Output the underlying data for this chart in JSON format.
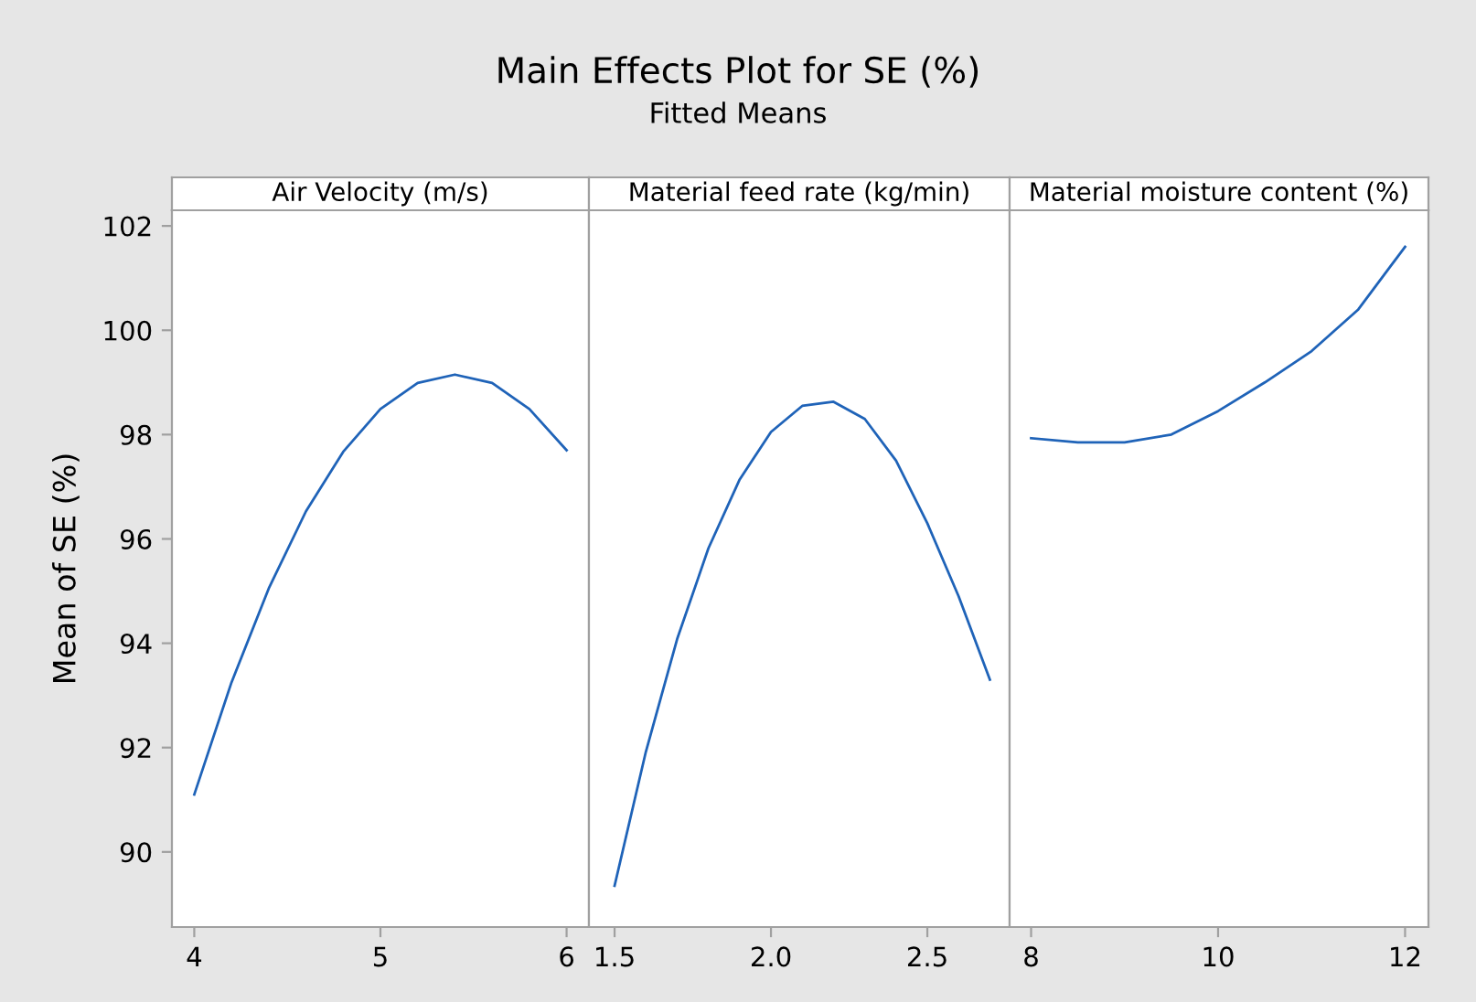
{
  "chart_data": [
    {
      "type": "line",
      "xlabel": "Air Velocity (m/s)",
      "ylabel": "Mean of SE (%)",
      "x": [
        4,
        4.2,
        4.4,
        4.6,
        4.8,
        5.0,
        5.2,
        5.4,
        5.6,
        5.8,
        6.0
      ],
      "series": [
        {
          "color": "#1f63b8",
          "values": [
            91.1,
            93.25,
            95.05,
            96.53,
            97.67,
            98.49,
            98.99,
            99.15,
            98.99,
            98.49,
            97.7
          ]
        }
      ],
      "xlim": [
        3.88,
        6.12
      ],
      "xticks": [
        4,
        5,
        6
      ],
      "ylim": [
        88.56,
        102.3
      ],
      "yticks": [
        90,
        92,
        94,
        96,
        98,
        100,
        102
      ],
      "grid": false,
      "legend": false,
      "marker": "none",
      "line_style": "solid"
    },
    {
      "type": "line",
      "title": "Main Effects Plot for SE (%)",
      "subtitle": "Fitted Means",
      "xlabel": "Material feed rate (kg/min)",
      "x": [
        1.5,
        1.6,
        1.7,
        1.8,
        1.9,
        2.0,
        2.1,
        2.2,
        2.3,
        2.4,
        2.5,
        2.6,
        2.7
      ],
      "series": [
        {
          "color": "#1f63b8",
          "values": [
            89.35,
            91.92,
            94.08,
            95.82,
            97.14,
            98.05,
            98.55,
            98.63,
            98.3,
            97.5,
            96.3,
            94.9,
            93.3
          ]
        }
      ],
      "xlim": [
        1.418,
        2.763
      ],
      "xticks": [
        {
          "value": 1.5,
          "label": "1.5"
        },
        {
          "value": 2.0,
          "label": "2.0"
        },
        {
          "value": 2.5,
          "label": "2.5"
        }
      ],
      "ylim": [
        88.56,
        102.3
      ],
      "tick_labels": "x",
      "grid": false,
      "legend": false,
      "marker": "none",
      "line_style": "solid"
    },
    {
      "type": "line",
      "xlabel": "Material moisture content (%)",
      "x": [
        8,
        8.5,
        9,
        9.5,
        10,
        10.5,
        11,
        11.5,
        12
      ],
      "series": [
        {
          "color": "#1f63b8",
          "values": [
            97.93,
            97.85,
            97.85,
            98.0,
            98.45,
            99.0,
            99.6,
            100.4,
            101.6
          ]
        }
      ],
      "xlim": [
        7.77,
        12.25
      ],
      "xticks": [
        8,
        10,
        12
      ],
      "ylim": [
        88.56,
        102.3
      ],
      "tick_labels": "x",
      "grid": false,
      "legend": false,
      "marker": "none",
      "line_style": "solid"
    }
  ]
}
